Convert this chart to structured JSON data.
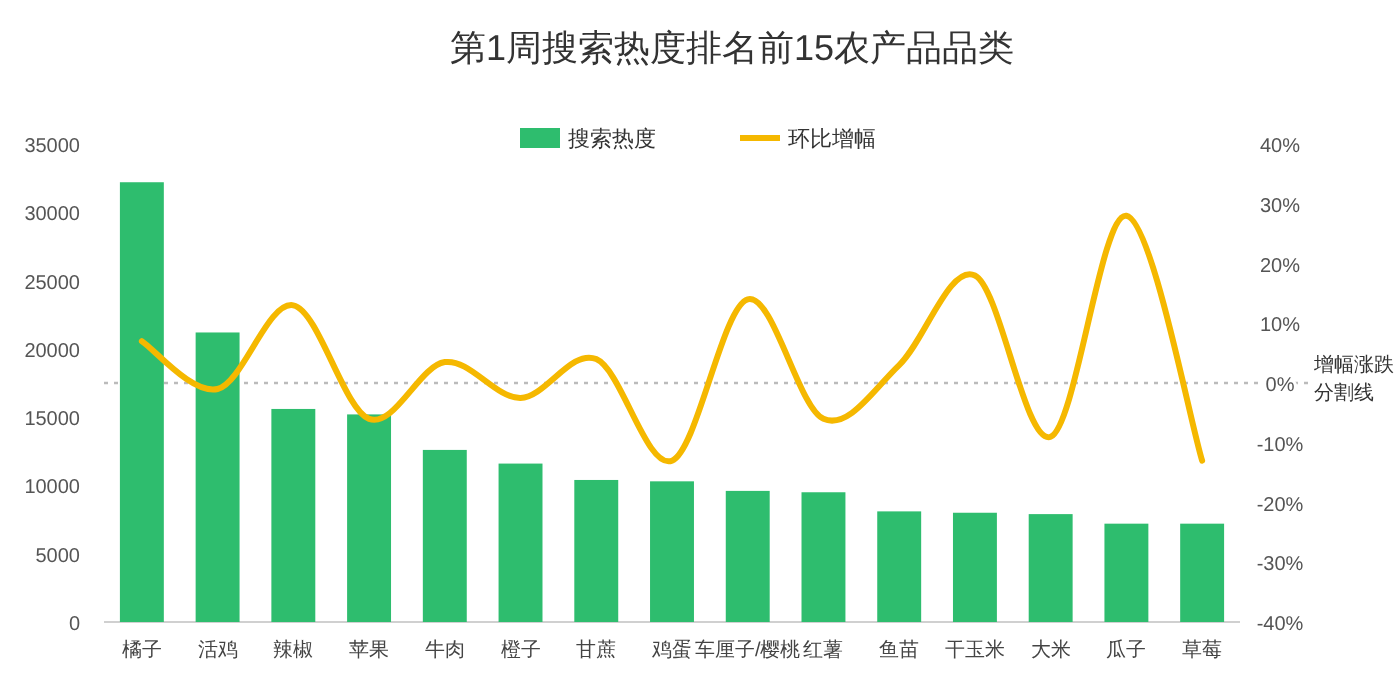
{
  "chart_data": {
    "type": "bar",
    "title": "第1周搜索热度排名前15农产品品类",
    "categories": [
      "橘子",
      "活鸡",
      "辣椒",
      "苹果",
      "牛肉",
      "橙子",
      "甘蔗",
      "鸡蛋",
      "车厘子/樱桃",
      "红薯",
      "鱼苗",
      "干玉米",
      "大米",
      "瓜子",
      "草莓"
    ],
    "series": [
      {
        "name": "搜索热度",
        "color": "#2ebd6e",
        "values": [
          32200,
          21200,
          15600,
          15200,
          12600,
          11600,
          10400,
          10300,
          9600,
          9500,
          8100,
          8000,
          7900,
          7200,
          7200
        ]
      },
      {
        "name": "环比增幅",
        "type": "line",
        "axis": "y2",
        "color": "#f5b800",
        "values": [
          7,
          -1,
          13,
          -6,
          3.5,
          -2.5,
          4,
          -13,
          14,
          -6,
          3,
          18,
          -9,
          28,
          -13
        ]
      }
    ],
    "ylim": [
      0,
      35000
    ],
    "yticks": [
      0,
      5000,
      10000,
      15000,
      20000,
      25000,
      30000,
      35000
    ],
    "y2lim": [
      -40,
      40
    ],
    "y2ticks": [
      {
        "value": -40,
        "label": "-40%"
      },
      {
        "value": -30,
        "label": "-30%"
      },
      {
        "value": -20,
        "label": "-20%"
      },
      {
        "value": -10,
        "label": "-10%"
      },
      {
        "value": 0,
        "label": "0%"
      },
      {
        "value": 10,
        "label": "10%"
      },
      {
        "value": 20,
        "label": "20%"
      },
      {
        "value": 30,
        "label": "30%"
      },
      {
        "value": 40,
        "label": "40%"
      }
    ],
    "ref_lines": [
      {
        "axis": "y2",
        "value": 0,
        "label": "增幅涨跌分割线",
        "color": "#bbbbbb",
        "line_style": "dotted"
      }
    ],
    "legend": "top",
    "grid": false
  }
}
